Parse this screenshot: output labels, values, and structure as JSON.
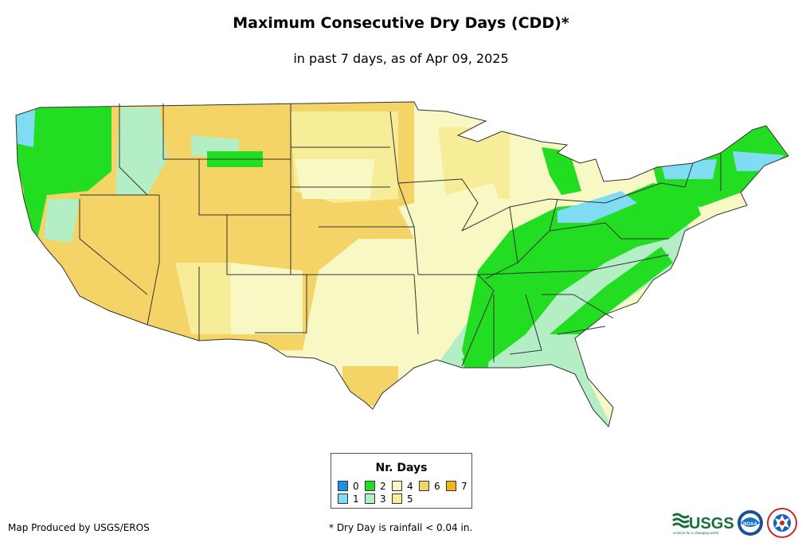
{
  "header": {
    "title": "Maximum Consecutive Dry Days (CDD)*",
    "subtitle": "in past 7 days, as of Apr 09, 2025"
  },
  "legend": {
    "title": "Nr. Days",
    "items": [
      {
        "label": "0",
        "color": "#1e90e6"
      },
      {
        "label": "1",
        "color": "#7fdcf2"
      },
      {
        "label": "2",
        "color": "#22dd22"
      },
      {
        "label": "3",
        "color": "#b4eec4"
      },
      {
        "label": "4",
        "color": "#f8f8c4"
      },
      {
        "label": "5",
        "color": "#f7ec98"
      },
      {
        "label": "6",
        "color": "#f4d466"
      },
      {
        "label": "7",
        "color": "#f2b51c"
      }
    ]
  },
  "footer": {
    "credit": "Map Produced by USGS/EROS",
    "footnote": "* Dry Day is rainfall < 0.04 in.",
    "logos": {
      "usgs_text": "USGS",
      "usgs_tagline": "science for a changing world",
      "noaa_text": "NOAA"
    }
  },
  "colors": {
    "state_border": "#333333",
    "background": "#ffffff"
  }
}
